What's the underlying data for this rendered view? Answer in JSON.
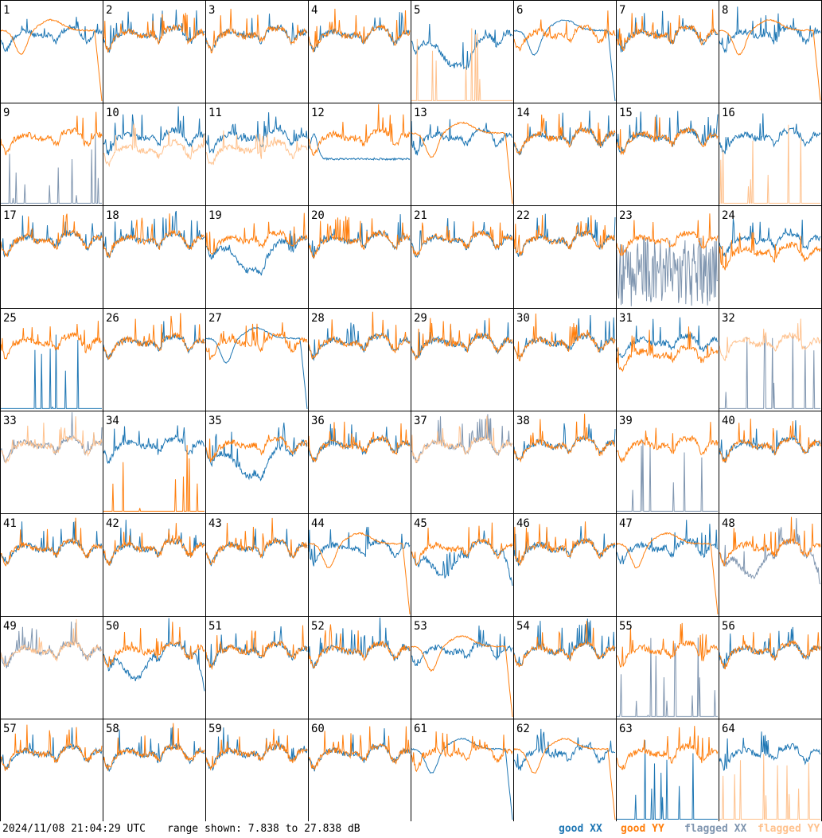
{
  "chart_data": {
    "type": "line",
    "panels": [
      {
        "id": "1",
        "profile": "xx_good_yy_wave"
      },
      {
        "id": "2",
        "profile": "normal"
      },
      {
        "id": "3",
        "profile": "normal"
      },
      {
        "id": "4",
        "profile": "normal"
      },
      {
        "id": "5",
        "profile": "xx_dip_yy_flagged_spikes"
      },
      {
        "id": "6",
        "profile": "xx_wave_yy_good"
      },
      {
        "id": "7",
        "profile": "normal"
      },
      {
        "id": "8",
        "profile": "yy_wave_drop"
      },
      {
        "id": "9",
        "profile": "yy_good_xx_flagged_spikes"
      },
      {
        "id": "10",
        "profile": "flagged_yy_low"
      },
      {
        "id": "11",
        "profile": "flagged_yy_low"
      },
      {
        "id": "12",
        "profile": "xx_wave_flat"
      },
      {
        "id": "13",
        "profile": "yy_wave_drop"
      },
      {
        "id": "14",
        "profile": "normal"
      },
      {
        "id": "15",
        "profile": "normal"
      },
      {
        "id": "16",
        "profile": "xx_good_yy_flagged_spikes"
      },
      {
        "id": "17",
        "profile": "normal"
      },
      {
        "id": "18",
        "profile": "normal"
      },
      {
        "id": "19",
        "profile": "xx_dip"
      },
      {
        "id": "20",
        "profile": "normal"
      },
      {
        "id": "21",
        "profile": "normal"
      },
      {
        "id": "22",
        "profile": "normal"
      },
      {
        "id": "23",
        "profile": "yy_good_xx_flagged_noise"
      },
      {
        "id": "24",
        "profile": "yy_low"
      },
      {
        "id": "25",
        "profile": "yy_only"
      },
      {
        "id": "26",
        "profile": "normal"
      },
      {
        "id": "27",
        "profile": "xx_wave_yy_good"
      },
      {
        "id": "28",
        "profile": "normal"
      },
      {
        "id": "29",
        "profile": "normal"
      },
      {
        "id": "30",
        "profile": "normal"
      },
      {
        "id": "31",
        "profile": "yy_low"
      },
      {
        "id": "32",
        "profile": "flagged_yy_only"
      },
      {
        "id": "33",
        "profile": "flagged_both"
      },
      {
        "id": "34",
        "profile": "xx_good_yy_spikes"
      },
      {
        "id": "35",
        "profile": "xx_dip"
      },
      {
        "id": "36",
        "profile": "normal"
      },
      {
        "id": "37",
        "profile": "flagged_both"
      },
      {
        "id": "38",
        "profile": "normal"
      },
      {
        "id": "39",
        "profile": "yy_good_xx_flagged_spikes"
      },
      {
        "id": "40",
        "profile": "normal"
      },
      {
        "id": "41",
        "profile": "normal"
      },
      {
        "id": "42",
        "profile": "normal"
      },
      {
        "id": "43",
        "profile": "normal"
      },
      {
        "id": "44",
        "profile": "yy_wave_drop"
      },
      {
        "id": "45",
        "profile": "xx_dip_drop"
      },
      {
        "id": "46",
        "profile": "normal"
      },
      {
        "id": "47",
        "profile": "yy_wave_drop"
      },
      {
        "id": "48",
        "profile": "flagged_xx_drop"
      },
      {
        "id": "49",
        "profile": "flagged_both"
      },
      {
        "id": "50",
        "profile": "xx_dip_drop"
      },
      {
        "id": "51",
        "profile": "normal"
      },
      {
        "id": "52",
        "profile": "normal"
      },
      {
        "id": "53",
        "profile": "yy_wave_low"
      },
      {
        "id": "54",
        "profile": "normal"
      },
      {
        "id": "55",
        "profile": "yy_good_xx_flagged_spikes"
      },
      {
        "id": "56",
        "profile": "normal"
      },
      {
        "id": "57",
        "profile": "normal"
      },
      {
        "id": "58",
        "profile": "normal"
      },
      {
        "id": "59",
        "profile": "normal"
      },
      {
        "id": "60",
        "profile": "normal"
      },
      {
        "id": "61",
        "profile": "xx_wave_yy_good"
      },
      {
        "id": "62",
        "profile": "yy_low_wave"
      },
      {
        "id": "63",
        "profile": "yy_only"
      },
      {
        "id": "64",
        "profile": "xx_good_yy_flagged_spikes"
      }
    ],
    "range_db": [
      7.838,
      27.838
    ],
    "series": [
      {
        "name": "good XX",
        "color": "#1f77b4"
      },
      {
        "name": "good YY",
        "color": "#ff7f0e"
      },
      {
        "name": "flagged XX",
        "color": "#8096b0"
      },
      {
        "name": "flagged YY",
        "color": "#ffc28e"
      }
    ]
  },
  "footer": {
    "timestamp": "2024/11/08 21:04:29 UTC",
    "range_text": "range shown: 7.838 to 27.838 dB"
  },
  "legend": {
    "good_xx": "good XX",
    "good_yy": "good YY",
    "flagged_xx": "flagged XX",
    "flagged_yy": "flagged YY"
  }
}
